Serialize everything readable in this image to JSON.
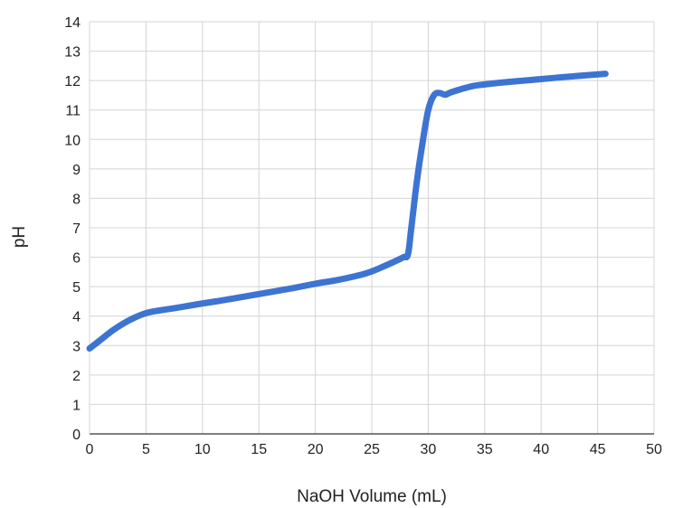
{
  "chart_data": {
    "type": "line",
    "xlabel": "NaOH Volume (mL)",
    "ylabel": "pH",
    "xlim": [
      0,
      50
    ],
    "ylim": [
      0,
      14
    ],
    "x_ticks": [
      "0",
      "5",
      "10",
      "15",
      "20",
      "25",
      "30",
      "35",
      "40",
      "45",
      "50"
    ],
    "y_ticks": [
      "0",
      "1",
      "2",
      "3",
      "4",
      "5",
      "6",
      "7",
      "8",
      "9",
      "10",
      "11",
      "12",
      "13",
      "14"
    ],
    "grid": true,
    "legend": "none",
    "colors": {
      "line": "#3d74d2",
      "grid": "#d4d4d4",
      "axis": "#333333"
    },
    "series": [
      {
        "x": [
          0,
          1,
          2,
          3,
          4,
          5,
          6,
          7,
          8,
          10,
          12,
          15,
          18,
          20,
          22,
          24,
          25,
          26,
          27,
          27.8,
          28.2,
          28.5,
          29,
          29.5,
          30,
          30.5,
          31,
          31.5,
          32,
          33,
          34,
          35,
          37,
          40,
          42,
          44,
          45.7
        ],
        "y": [
          2.9,
          3.2,
          3.5,
          3.75,
          3.95,
          4.1,
          4.18,
          4.24,
          4.3,
          4.43,
          4.55,
          4.75,
          4.95,
          5.1,
          5.23,
          5.4,
          5.52,
          5.68,
          5.85,
          6.0,
          6.1,
          7.0,
          8.6,
          9.9,
          11.0,
          11.5,
          11.58,
          11.52,
          11.6,
          11.72,
          11.82,
          11.87,
          11.95,
          12.05,
          12.12,
          12.18,
          12.23
        ]
      }
    ]
  }
}
